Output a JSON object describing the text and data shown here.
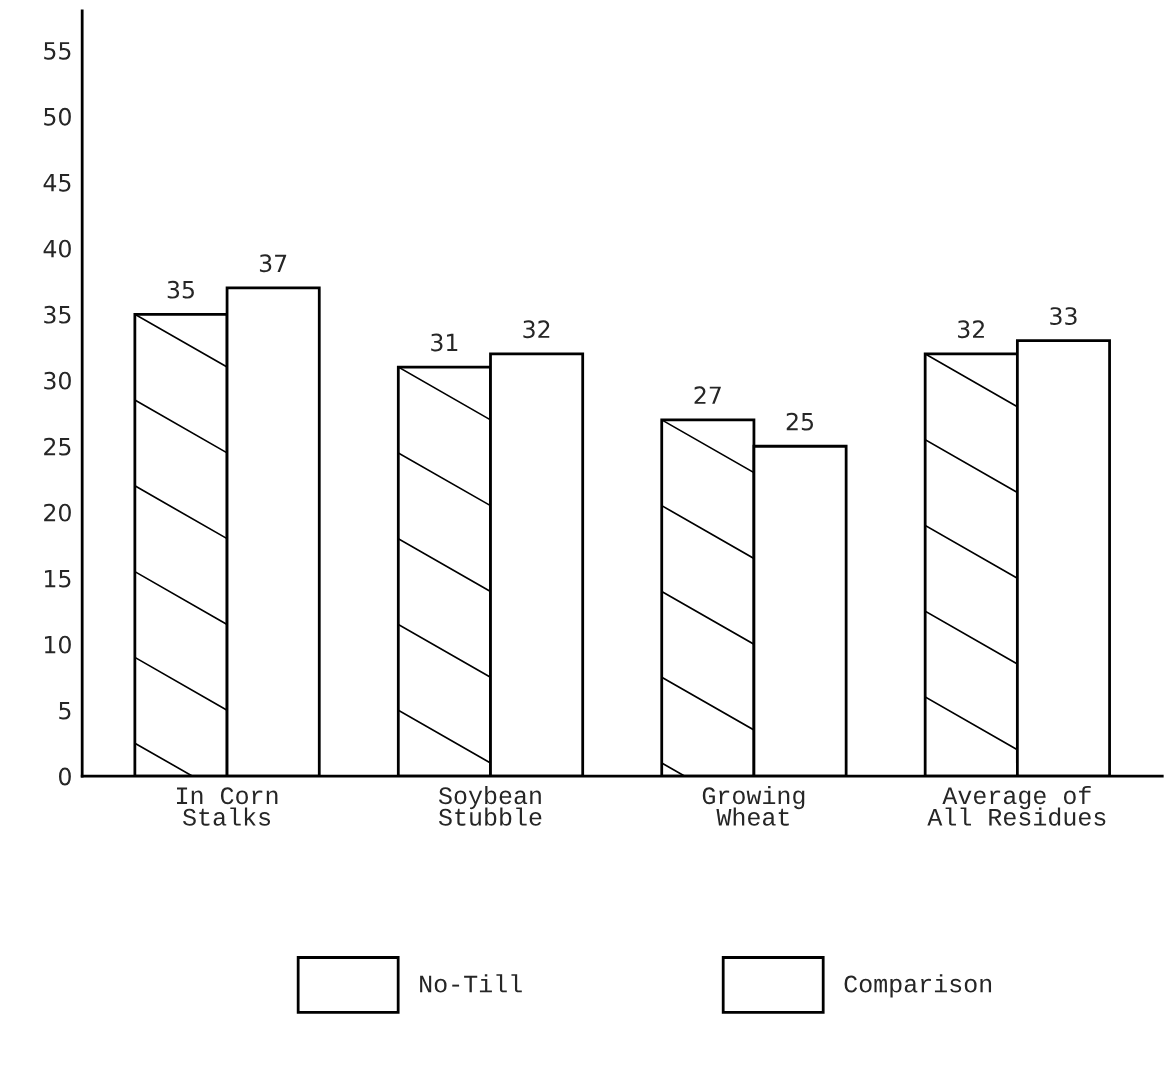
{
  "chart_data": {
    "type": "bar",
    "categories": [
      "In Corn\nStalks",
      "Soybean\nStubble",
      "Growing\nWheat",
      "Average of\nAll Residues"
    ],
    "series": [
      {
        "name": "No-Till",
        "color": "#ffffff",
        "values": [
          35,
          31,
          27,
          32
        ]
      },
      {
        "name": "Comparison",
        "color": "#ffffff",
        "values": [
          37,
          32,
          25,
          33
        ]
      }
    ],
    "ylim": [
      0,
      58
    ],
    "yticks": [
      0,
      5,
      10,
      15,
      20,
      25,
      30,
      35,
      40,
      45,
      50,
      55
    ],
    "data_labels": true,
    "grid": false,
    "legend": "bottom"
  }
}
